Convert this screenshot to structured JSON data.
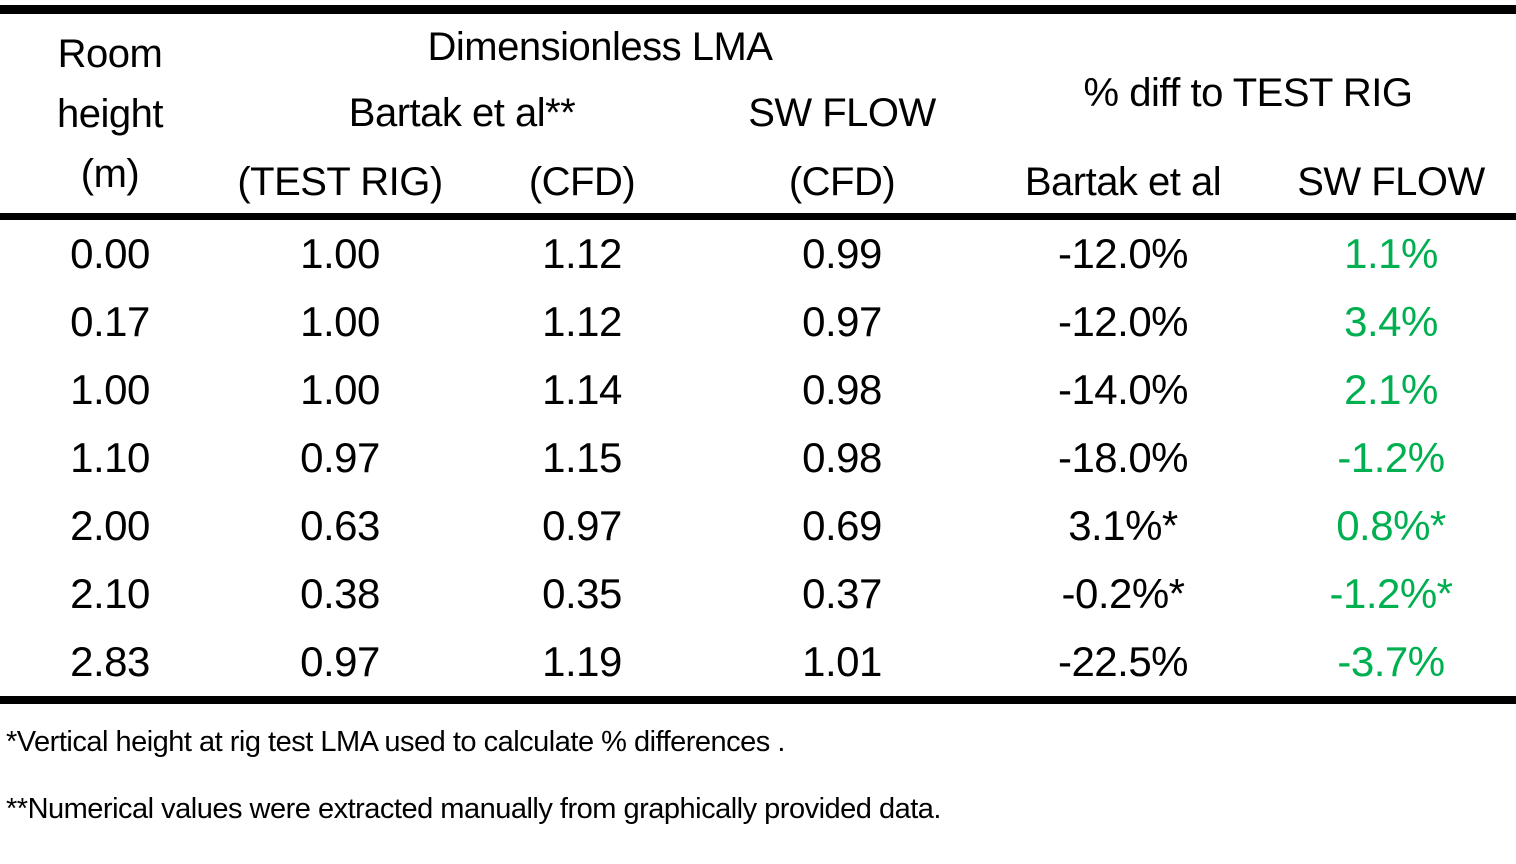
{
  "chart_data": {
    "type": "table",
    "header": {
      "col1_lines": [
        "Room",
        "height",
        "(m)"
      ],
      "group_dimensionless": "Dimensionless LMA",
      "group_pct_diff": "% diff to TEST RIG",
      "subgroup_bartak": "Bartak et al**",
      "subgroup_swflow": "SW FLOW",
      "sub_headers": [
        "(TEST RIG)",
        "(CFD)",
        "(CFD)",
        "Bartak et al",
        "SW FLOW"
      ]
    },
    "columns_flat": [
      "Room height (m)",
      "Dimensionless LMA - Bartak et al** (TEST RIG)",
      "Dimensionless LMA - Bartak et al** (CFD)",
      "Dimensionless LMA - SW FLOW (CFD)",
      "% diff to TEST RIG - Bartak et al",
      "% diff to TEST RIG - SW FLOW"
    ],
    "rows": [
      [
        "0.00",
        "1.00",
        "1.12",
        "0.99",
        "-12.0%",
        "1.1%"
      ],
      [
        "0.17",
        "1.00",
        "1.12",
        "0.97",
        "-12.0%",
        "3.4%"
      ],
      [
        "1.00",
        "1.00",
        "1.14",
        "0.98",
        "-14.0%",
        "2.1%"
      ],
      [
        "1.10",
        "0.97",
        "1.15",
        "0.98",
        "-18.0%",
        "-1.2%"
      ],
      [
        "2.00",
        "0.63",
        "0.97",
        "0.69",
        "3.1%*",
        "0.8%*"
      ],
      [
        "2.10",
        "0.38",
        "0.35",
        "0.37",
        "-0.2%*",
        "-1.2%*"
      ],
      [
        "2.83",
        "0.97",
        "1.19",
        "1.01",
        "-22.5%",
        "-3.7%"
      ]
    ],
    "colors": {
      "sw_flow_diff_text": "#00B050",
      "body_text": "#000000",
      "rule": "#000000"
    },
    "layout_hints": {
      "grid": "horizontal rules only",
      "last_column_colored": true
    }
  },
  "footnotes": [
    "*Vertical height at rig test LMA used to calculate % differences .",
    "**Numerical values were extracted manually from graphically provided data."
  ]
}
